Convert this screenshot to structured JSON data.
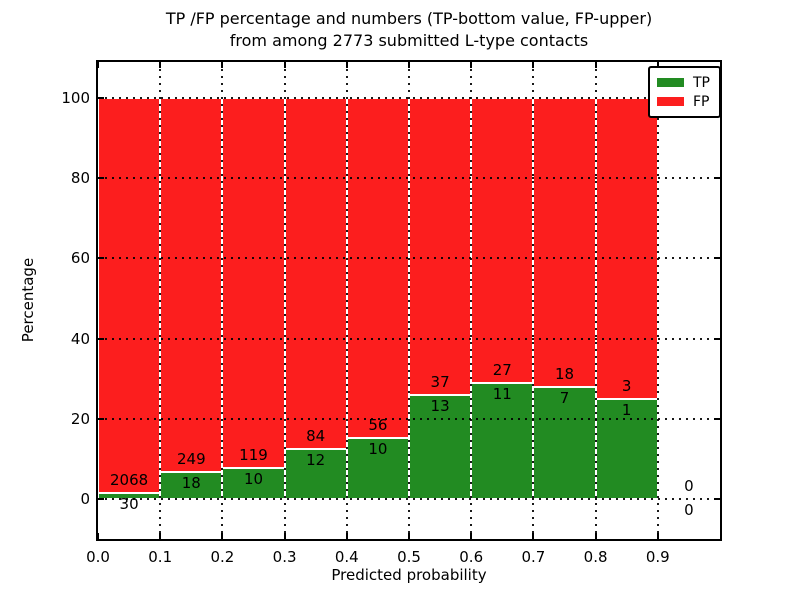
{
  "display": {
    "title_line1": "TP /FP percentage and numbers (TP-bottom value, FP-upper)",
    "title_line2": "from among 2773 submitted L-type contacts",
    "xlabel": "Predicted probability",
    "ylabel": "Percentage"
  },
  "legend": {
    "position": "upper-right",
    "items": [
      {
        "label": "TP",
        "color": "#228b22"
      },
      {
        "label": "FP",
        "color": "#fc1e1e"
      }
    ]
  },
  "axes": {
    "xticks": [
      "0.0",
      "0.1",
      "0.2",
      "0.3",
      "0.4",
      "0.5",
      "0.6",
      "0.7",
      "0.8",
      "0.9"
    ],
    "yticks": [
      0,
      20,
      40,
      60,
      80,
      100
    ],
    "xlim": [
      0,
      1.0
    ],
    "ylim": [
      -10,
      109
    ],
    "grid": "dotted"
  },
  "chart_data": {
    "type": "bar",
    "stacked": true,
    "normalized_to_percent": 100,
    "title": "TP /FP percentage and numbers (TP-bottom value, FP-upper) from among 2773 submitted L-type contacts",
    "xlabel": "Predicted probability",
    "ylabel": "Percentage",
    "total_contacts": 2773,
    "bin_width": 0.1,
    "bin_starts": [
      0.0,
      0.1,
      0.2,
      0.3,
      0.4,
      0.5,
      0.6,
      0.7,
      0.8,
      0.9
    ],
    "series": [
      {
        "name": "TP",
        "color": "#228b22",
        "counts": [
          30,
          18,
          10,
          12,
          10,
          13,
          11,
          7,
          1,
          0
        ]
      },
      {
        "name": "FP",
        "color": "#fc1e1e",
        "counts": [
          2068,
          249,
          119,
          84,
          56,
          37,
          27,
          18,
          3,
          0
        ]
      }
    ],
    "tp_percent_of_bin": [
      1.43,
      6.74,
      7.75,
      12.5,
      15.15,
      26.0,
      28.95,
      28.0,
      25.0,
      0
    ],
    "annotation_rule": "TP count printed below stack boundary, FP count printed above it",
    "legend_position": "upper right",
    "grid": "dotted",
    "bar_edge_color": "#ffffff"
  }
}
